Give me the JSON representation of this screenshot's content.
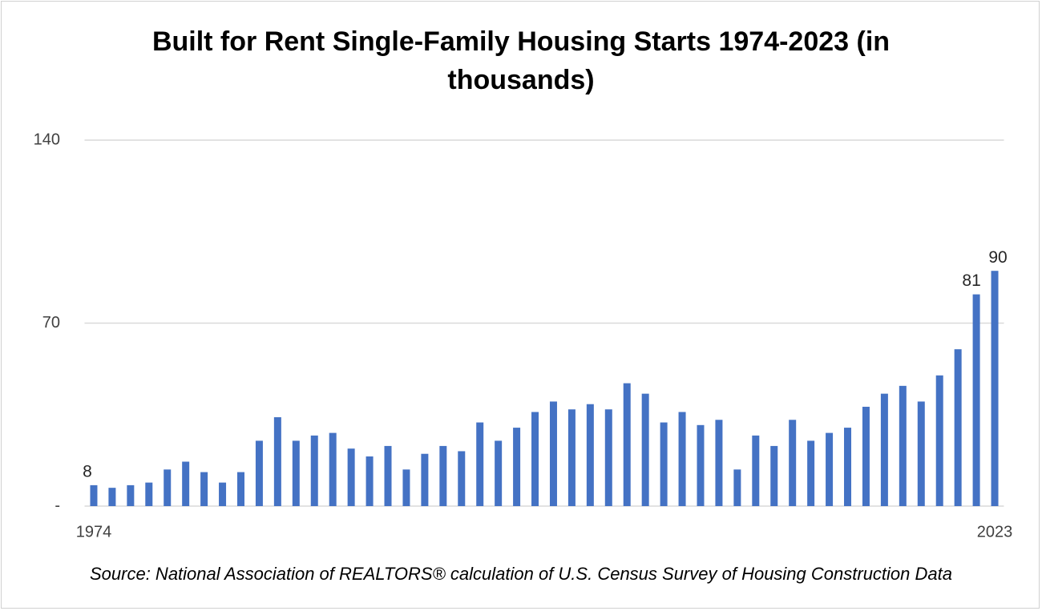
{
  "chart_data": {
    "type": "bar",
    "title": "Built for Rent Single-Family Housing Starts 1974-2023 (in thousands)",
    "source": "Source: National Association of REALTORS® calculation of U.S. Census Survey of Housing Construction Data",
    "categories": [
      "1974",
      null,
      null,
      null,
      null,
      null,
      null,
      null,
      null,
      null,
      null,
      null,
      null,
      null,
      null,
      null,
      null,
      null,
      null,
      null,
      null,
      null,
      null,
      null,
      null,
      null,
      null,
      null,
      null,
      null,
      null,
      null,
      null,
      null,
      null,
      null,
      null,
      null,
      null,
      null,
      null,
      null,
      null,
      null,
      null,
      null,
      null,
      null,
      null,
      "2023"
    ],
    "values": [
      8,
      7,
      8,
      9,
      14,
      17,
      13,
      9,
      13,
      25,
      34,
      25,
      27,
      28,
      22,
      19,
      23,
      14,
      20,
      23,
      21,
      32,
      25,
      30,
      36,
      40,
      37,
      39,
      37,
      47,
      43,
      32,
      36,
      31,
      33,
      14,
      27,
      23,
      33,
      25,
      28,
      30,
      38,
      43,
      46,
      40,
      50,
      60,
      81,
      90
    ],
    "color": "#4472c4",
    "ylim": [
      0,
      140
    ],
    "yticks": [
      {
        "value": 0,
        "label": "-"
      },
      70,
      140
    ],
    "grid": true
  }
}
